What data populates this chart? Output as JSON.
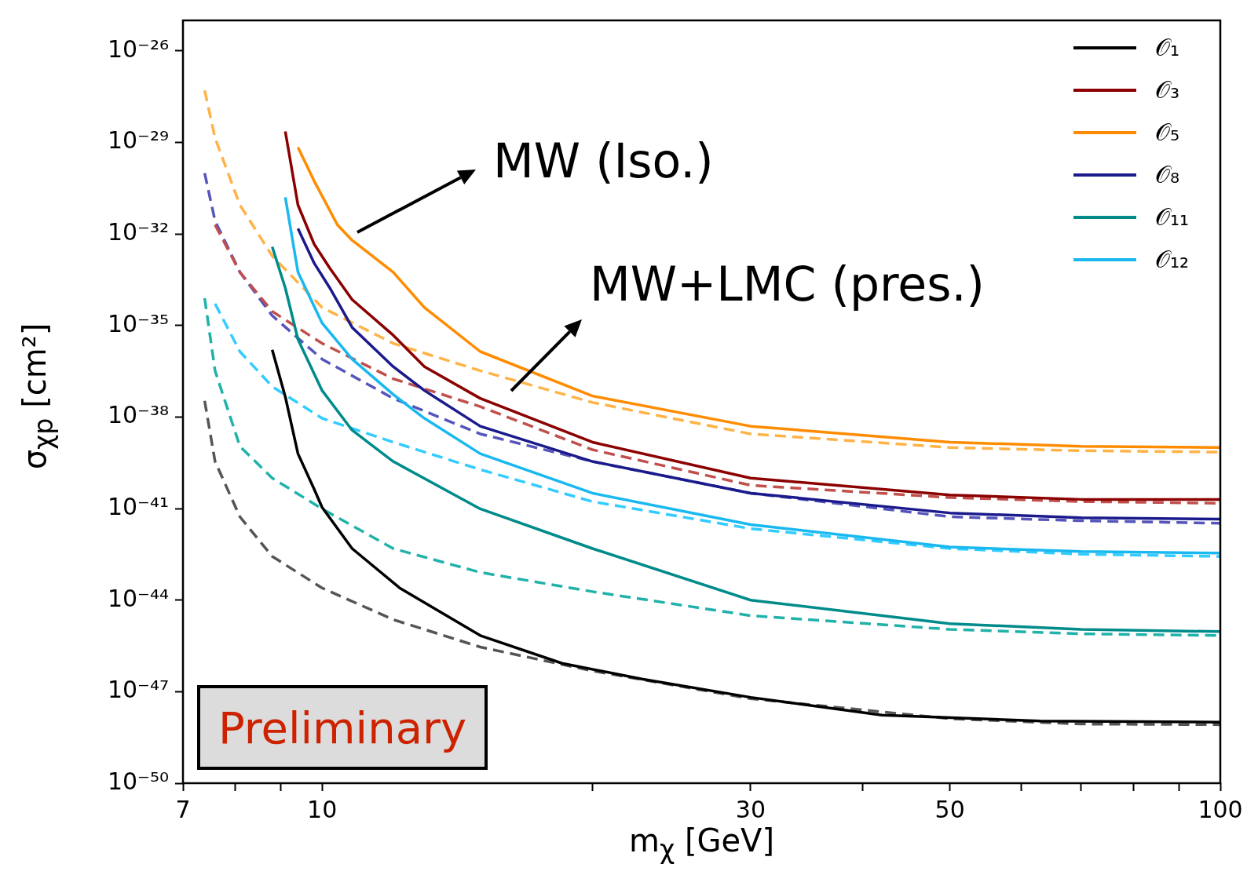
{
  "chart_data": {
    "type": "line",
    "xlabel": "m$_{χ}$ [GeV]",
    "ylabel": "σ$_{χp}$ [cm²]",
    "log": "xy",
    "legend": "top right",
    "xlim": [
      7,
      100
    ],
    "ylim": [
      1e-50,
      1e-25
    ],
    "xticks": [
      7,
      {
        "value": 8,
        "label": null
      },
      {
        "value": 9,
        "label": null
      },
      10,
      {
        "value": 20,
        "label": null
      },
      30,
      {
        "value": 40,
        "label": null
      },
      50,
      {
        "value": 60,
        "label": null
      },
      {
        "value": 70,
        "label": null
      },
      {
        "value": 80,
        "label": null
      },
      {
        "value": 90,
        "label": null
      },
      100
    ],
    "yticks": [
      {
        "value": 1e-50,
        "label": "10⁻⁵⁰"
      },
      {
        "value": 1e-47,
        "label": "10⁻⁴⁷"
      },
      {
        "value": 1e-44,
        "label": "10⁻⁴⁴"
      },
      {
        "value": 1e-41,
        "label": "10⁻⁴¹"
      },
      {
        "value": 1e-38,
        "label": "10⁻³⁸"
      },
      {
        "value": 1e-35,
        "label": "10⁻³⁵"
      },
      {
        "value": 1e-32,
        "label": "10⁻³²"
      },
      {
        "value": 1e-29,
        "label": "10⁻²⁹"
      },
      {
        "value": 1e-26,
        "label": "10⁻²⁶"
      }
    ],
    "annotations": [
      "MW (Iso.)",
      "MW+LMC (pres.)",
      "Preliminary"
    ],
    "series": [
      {
        "name": "𝒪₁",
        "color": "#000000",
        "line_style": "solid",
        "x": [
          8.8,
          9.1,
          9.4,
          9.8,
          10,
          10.8,
          12.2,
          15,
          18.5,
          22.7,
          30,
          42,
          63,
          100
        ],
        "values": [
          1.6e-36,
          4.6e-38,
          6.3e-40,
          4.3e-41,
          1.1e-41,
          4.9e-43,
          2.5e-44,
          6.9e-46,
          8.5e-47,
          2.6e-47,
          6.5e-48,
          1.7e-48,
          1.1e-48,
          1e-48
        ]
      },
      {
        "name": "𝒪₃",
        "color": "#8b0000",
        "line_style": "solid",
        "x": [
          9.1,
          9.4,
          9.8,
          10.2,
          10.8,
          12,
          13,
          15,
          20,
          30,
          50,
          70,
          100
        ],
        "values": [
          2.3e-29,
          8.9e-32,
          4.6e-33,
          7.6e-34,
          7.1e-35,
          4.8e-36,
          4.5e-37,
          4.1e-38,
          1.5e-39,
          1e-40,
          2.8e-41,
          2e-41,
          2e-41
        ]
      },
      {
        "name": "𝒪₅",
        "color": "#ff8c00",
        "line_style": "solid",
        "x": [
          9.4,
          9.8,
          10.4,
          10.8,
          12,
          13,
          15,
          20,
          30,
          50,
          70,
          100
        ],
        "values": [
          6.9e-30,
          5.4e-31,
          2e-32,
          6.2e-33,
          5.6e-34,
          3.9e-35,
          1.4e-36,
          4.9e-38,
          5e-39,
          1.5e-39,
          1.1e-39,
          1e-39
        ]
      },
      {
        "name": "𝒪₈",
        "color": "#1a1a8c",
        "line_style": "solid",
        "x": [
          9.4,
          9.8,
          10.2,
          10.8,
          12,
          13,
          15,
          20,
          30,
          50,
          70,
          100
        ],
        "values": [
          1.5e-32,
          1.1e-33,
          1.7e-34,
          8.7e-36,
          4.5e-37,
          7.4e-38,
          5e-39,
          3.5e-40,
          3.2e-41,
          7.2e-42,
          5e-42,
          4.5e-42
        ]
      },
      {
        "name": "𝒪₁₁",
        "color": "#008b8b",
        "line_style": "solid",
        "x": [
          8.8,
          9.1,
          9.4,
          10,
          10.8,
          12,
          15,
          20,
          30,
          50,
          70,
          100
        ],
        "values": [
          3.8e-33,
          1.7e-34,
          3.5e-36,
          7.4e-38,
          3.7e-39,
          3.5e-40,
          9.8e-42,
          4.9e-43,
          1e-44,
          1.7e-45,
          1.1e-45,
          9.3e-46
        ]
      },
      {
        "name": "𝒪₁₂",
        "color": "#1ab8f0",
        "line_style": "solid",
        "x": [
          9.1,
          9.4,
          10,
          10.8,
          12,
          13,
          15,
          20,
          30,
          50,
          70,
          100
        ],
        "values": [
          1.6e-31,
          5.6e-34,
          1.2e-35,
          7.9e-37,
          5.5e-38,
          9.1e-39,
          6.3e-40,
          3.2e-41,
          3e-42,
          5.5e-43,
          3.9e-43,
          3.5e-43
        ]
      },
      {
        "color": "#555555",
        "line_style": "dashed",
        "x": [
          7.4,
          7.6,
          8.1,
          8.8,
          10,
          12,
          15,
          20,
          30,
          50,
          70,
          100
        ],
        "values": [
          3.4e-38,
          3.5e-40,
          5.4e-42,
          2.7e-43,
          2.5e-44,
          2.3e-45,
          2.9e-46,
          4.8e-47,
          5.9e-48,
          1.3e-48,
          8.7e-49,
          8.3e-49
        ]
      },
      {
        "color": "#c0504d",
        "line_style": "dashed",
        "x": [
          7.6,
          8.1,
          8.8,
          10,
          12,
          15,
          20,
          30,
          50,
          70,
          100
        ],
        "values": [
          2e-32,
          5.6e-34,
          2.9e-35,
          2.6e-36,
          1.8e-37,
          2.2e-38,
          8.5e-40,
          5.8e-41,
          2.3e-41,
          1.7e-41,
          1.5e-41
        ]
      },
      {
        "color": "#ffb347",
        "line_style": "dashed",
        "x": [
          7.4,
          7.6,
          8.1,
          8.8,
          10,
          12,
          15,
          20,
          30,
          50,
          70,
          100
        ],
        "values": [
          5.1e-28,
          1.4e-29,
          8.9e-32,
          1.9e-33,
          3.9e-35,
          2.6e-36,
          3.3e-37,
          3e-38,
          2.8e-39,
          1e-39,
          7.9e-40,
          7.1e-40
        ]
      },
      {
        "color": "#5555bb",
        "line_style": "dashed",
        "x": [
          7.4,
          7.6,
          8.1,
          8.8,
          10,
          12,
          15,
          20,
          30,
          50,
          70,
          100
        ],
        "values": [
          9.8e-31,
          2.7e-32,
          5.6e-34,
          2.1e-35,
          7.9e-37,
          4.1e-38,
          2.8e-39,
          3.5e-40,
          3.2e-41,
          5.4e-42,
          4e-42,
          3.3e-42
        ]
      },
      {
        "color": "#20b2aa",
        "line_style": "dashed",
        "x": [
          7.4,
          7.6,
          8.1,
          8.8,
          10,
          12,
          15,
          20,
          30,
          50,
          70,
          100
        ],
        "values": [
          7.9e-35,
          3.3e-37,
          1.1e-39,
          1e-40,
          9.8e-42,
          4.9e-43,
          8.1e-44,
          1.9e-44,
          3.1e-45,
          1.1e-45,
          7.9e-46,
          6.9e-46
        ]
      },
      {
        "color": "#33ccff",
        "line_style": "dashed",
        "x": [
          7.6,
          8.1,
          8.8,
          10,
          12,
          15,
          20,
          30,
          50,
          70,
          100
        ],
        "values": [
          5.2e-35,
          1.4e-36,
          1e-37,
          9.1e-39,
          1.5e-39,
          1.9e-40,
          1.7e-41,
          2.2e-42,
          4.9e-43,
          3.2e-43,
          2.7e-43
        ]
      }
    ]
  }
}
